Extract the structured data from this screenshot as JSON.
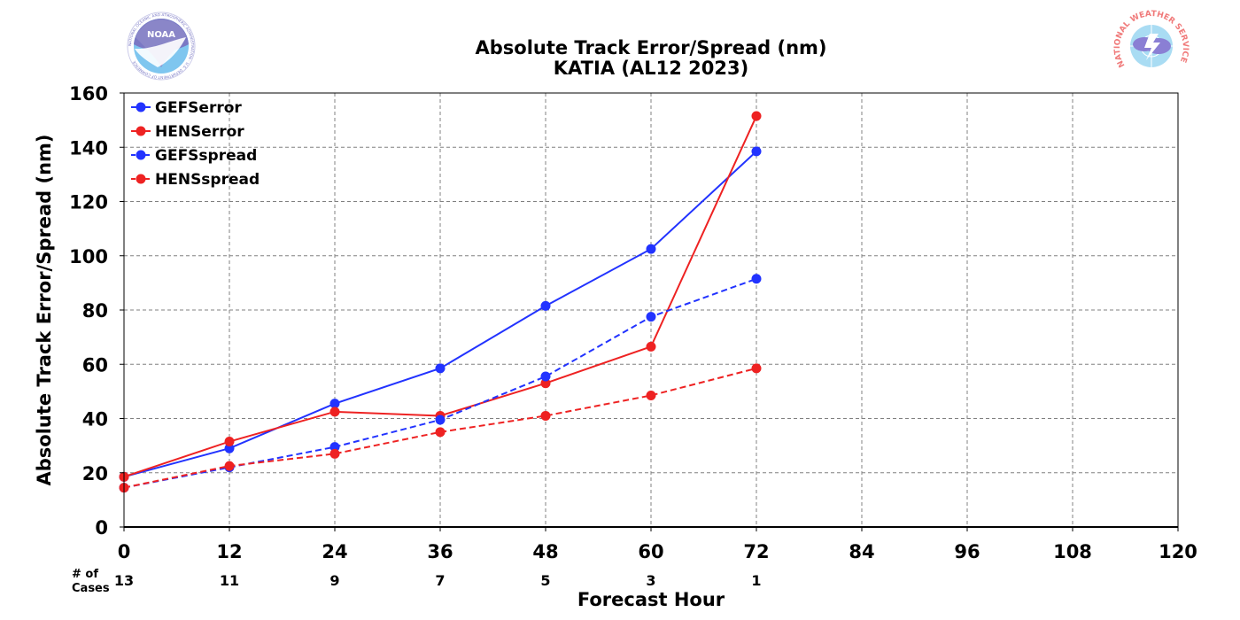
{
  "chart_data": {
    "type": "line",
    "title": "Absolute Track Error/Spread (nm)",
    "subtitle": "KATIA (AL12 2023)",
    "xlabel": "Forecast Hour",
    "ylabel": "Absolute Track Error/Spread (nm)",
    "xlim": [
      0,
      120
    ],
    "ylim": [
      0,
      160
    ],
    "xticks": [
      "0",
      "12",
      "24",
      "36",
      "48",
      "60",
      "72",
      "84",
      "96",
      "108",
      "120"
    ],
    "yticks": [
      "0",
      "20",
      "40",
      "60",
      "80",
      "100",
      "120",
      "140",
      "160"
    ],
    "grid": true,
    "legend_position": "top-left",
    "cases_label": "# of\nCases",
    "cases_label_lines": [
      "# of",
      "Cases"
    ],
    "cases": [
      {
        "x": 0,
        "n": "13"
      },
      {
        "x": 12,
        "n": "11"
      },
      {
        "x": 24,
        "n": "9"
      },
      {
        "x": 36,
        "n": "7"
      },
      {
        "x": 48,
        "n": "5"
      },
      {
        "x": 60,
        "n": "3"
      },
      {
        "x": 72,
        "n": "1"
      }
    ],
    "x": [
      0,
      12,
      24,
      36,
      48,
      60,
      72
    ],
    "series": [
      {
        "name": "GEFSerror",
        "color": "#2233ff",
        "style": "solid",
        "values": [
          18.5,
          29,
          45.5,
          58.5,
          81.5,
          102.5,
          138.5
        ]
      },
      {
        "name": "HENSerror",
        "color": "#ee2222",
        "style": "solid",
        "values": [
          18.5,
          31.5,
          42.5,
          41,
          53,
          66.5,
          151.5
        ]
      },
      {
        "name": "GEFSspread",
        "color": "#2233ff",
        "style": "dashed",
        "values": [
          14.5,
          22,
          29.5,
          39.5,
          55.5,
          77.5,
          91.5
        ]
      },
      {
        "name": "HENSspread",
        "color": "#ee2222",
        "style": "dashed",
        "values": [
          14.5,
          22.5,
          27,
          35,
          41,
          48.5,
          58.5
        ]
      }
    ]
  },
  "logos": {
    "left": {
      "icon": "noaa-logo-icon",
      "text": "NOAA",
      "ring_text": "NATIONAL OCEANIC AND ATMOSPHERIC ADMINISTRATION · U.S. DEPARTMENT OF COMMERCE"
    },
    "right": {
      "icon": "nws-logo-icon",
      "ring_text": "NATIONAL WEATHER SERVICE"
    }
  }
}
